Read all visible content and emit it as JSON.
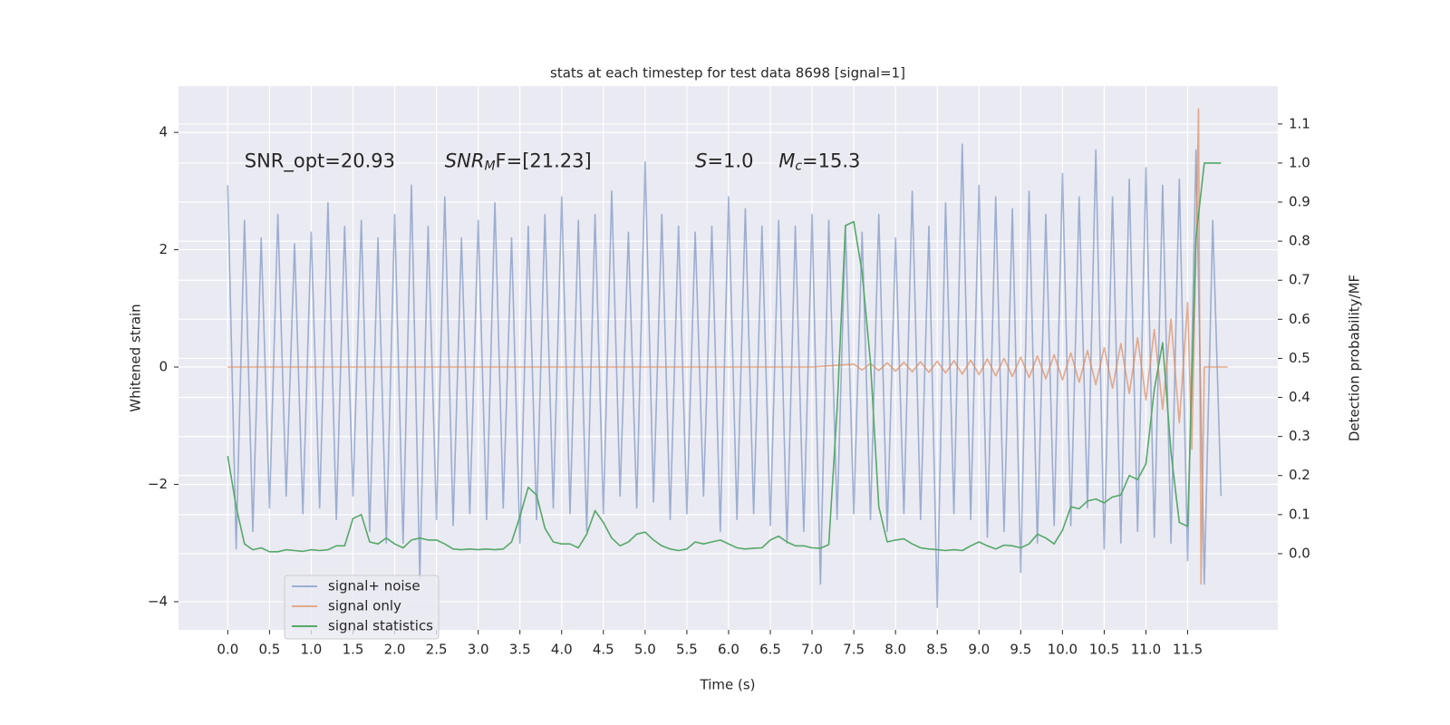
{
  "chart_data": {
    "type": "line",
    "title": "stats at each timestep for test data 8698 [signal=1]",
    "xlabel": "Time (s)",
    "ylabel": "Whitened strain",
    "y2label": "Detection probability/MF",
    "grid": true,
    "legend_position": "lower left",
    "xlim": [
      -0.59,
      12.58
    ],
    "xticks": [
      {
        "value": 0,
        "label": "0.0"
      },
      0.5,
      {
        "value": 1,
        "label": "1.0"
      },
      1.5,
      {
        "value": 2,
        "label": "2.0"
      },
      2.5,
      {
        "value": 3,
        "label": "3.0"
      },
      3.5,
      {
        "value": 4,
        "label": "4.0"
      },
      4.5,
      {
        "value": 5,
        "label": "5.0"
      },
      5.5,
      {
        "value": 6,
        "label": "6.0"
      },
      6.5,
      {
        "value": 7,
        "label": "7.0"
      },
      7.5,
      {
        "value": 8,
        "label": "8.0"
      },
      8.5,
      {
        "value": 9,
        "label": "9.0"
      },
      9.5,
      {
        "value": 10,
        "label": "10.0"
      },
      10.5,
      {
        "value": 11,
        "label": "11.0"
      },
      11.5
    ],
    "ylim": [
      -4.48,
      4.79
    ],
    "yticks": [
      {
        "value": -4,
        "label": "−4"
      },
      {
        "value": -2,
        "label": "−2"
      },
      0,
      2,
      4
    ],
    "y2lim": [
      -0.195,
      1.197
    ],
    "y2ticks": [
      {
        "value": 0,
        "label": "0.0"
      },
      0.1,
      0.2,
      0.3,
      0.4,
      0.5,
      0.6,
      0.7,
      0.8,
      0.9,
      {
        "value": 1,
        "label": "1.0"
      },
      1.1
    ],
    "annotations": [
      {
        "x": 0.2,
        "y": 3.5,
        "parts": [
          {
            "text": "SNR_opt=20.93"
          }
        ]
      },
      {
        "x": 2.6,
        "y": 3.5,
        "parts": [
          {
            "text": "SNR",
            "style": "italic"
          },
          {
            "text": "M",
            "style": "sub"
          },
          {
            "text": "F=[21.23]"
          }
        ]
      },
      {
        "x": 5.6,
        "y": 3.5,
        "parts": [
          {
            "text": "S",
            "style": "italic"
          },
          {
            "text": "=1.0"
          }
        ]
      },
      {
        "x": 6.6,
        "y": 3.5,
        "parts": [
          {
            "text": "M",
            "style": "italic"
          },
          {
            "text": "c",
            "style": "sub"
          },
          {
            "text": "=15.3"
          }
        ]
      }
    ],
    "series": [
      {
        "name": "signal+ noise",
        "color": "#4c72b0",
        "opacity": 0.5,
        "axis": "y",
        "x": [
          0,
          0.1,
          0.2,
          0.3,
          0.4,
          0.5,
          0.6,
          0.7,
          0.8,
          0.9,
          1,
          1.1,
          1.2,
          1.3,
          1.4,
          1.5,
          1.6,
          1.7,
          1.8,
          1.9,
          2,
          2.1,
          2.2,
          2.3,
          2.4,
          2.5,
          2.6,
          2.7,
          2.8,
          2.9,
          3,
          3.1,
          3.2,
          3.3,
          3.4,
          3.5,
          3.6,
          3.7,
          3.8,
          3.9,
          4,
          4.1,
          4.2,
          4.3,
          4.4,
          4.5,
          4.6,
          4.7,
          4.8,
          4.9,
          5,
          5.1,
          5.2,
          5.3,
          5.4,
          5.5,
          5.6,
          5.7,
          5.8,
          5.9,
          6,
          6.1,
          6.2,
          6.3,
          6.4,
          6.5,
          6.6,
          6.7,
          6.8,
          6.9,
          7,
          7.1,
          7.2,
          7.3,
          7.4,
          7.5,
          7.6,
          7.7,
          7.8,
          7.9,
          8,
          8.1,
          8.2,
          8.3,
          8.4,
          8.5,
          8.6,
          8.7,
          8.8,
          8.9,
          9,
          9.1,
          9.2,
          9.3,
          9.4,
          9.5,
          9.6,
          9.7,
          9.8,
          9.9,
          10,
          10.1,
          10.2,
          10.3,
          10.4,
          10.5,
          10.6,
          10.7,
          10.8,
          10.9,
          11,
          11.1,
          11.2,
          11.3,
          11.4,
          11.5,
          11.6,
          11.7,
          11.8,
          11.9
        ],
        "values": [
          3.1,
          -3.1,
          2.5,
          -2.8,
          2.2,
          -2.4,
          2.6,
          -2.2,
          2.1,
          -2.5,
          2.3,
          -2.4,
          2.8,
          -2.6,
          2.4,
          -2.2,
          2.5,
          -2.8,
          2.2,
          -3.0,
          2.6,
          -3.0,
          3.1,
          -3.6,
          2.4,
          -2.6,
          2.9,
          -2.7,
          2.2,
          -2.5,
          2.5,
          -2.6,
          2.8,
          -2.4,
          2.2,
          -3.0,
          2.4,
          -2.6,
          2.6,
          -2.4,
          2.9,
          -2.5,
          2.5,
          -2.8,
          2.6,
          -2.5,
          3.0,
          -2.2,
          2.3,
          -2.4,
          3.5,
          -2.3,
          2.6,
          -2.6,
          2.4,
          -2.5,
          2.3,
          -2.2,
          2.4,
          -2.8,
          2.9,
          -2.6,
          2.7,
          -2.5,
          2.4,
          -2.7,
          2.5,
          -3.0,
          2.4,
          -2.8,
          2.6,
          -3.7,
          2.5,
          -2.6,
          2.4,
          -2.5,
          2.3,
          -2.6,
          2.6,
          -2.8,
          2.2,
          -2.5,
          3.0,
          -2.6,
          2.4,
          -4.1,
          2.8,
          -2.5,
          3.8,
          -2.6,
          3.1,
          -2.9,
          2.9,
          -2.8,
          2.7,
          -3.5,
          3.0,
          -3.0,
          2.6,
          -2.7,
          3.3,
          -2.7,
          2.9,
          -2.4,
          3.7,
          -3.1,
          2.9,
          -3.0,
          3.2,
          -2.8,
          3.4,
          -2.9,
          3.1,
          -3.0,
          3.2,
          -3.3,
          3.7,
          -3.7,
          2.5,
          -2.2
        ]
      },
      {
        "name": "signal only",
        "color": "#dd8452",
        "opacity": 0.65,
        "axis": "y",
        "x": [
          0,
          7,
          7.5,
          7.6,
          7.7,
          7.8,
          7.9,
          8,
          8.1,
          8.2,
          8.3,
          8.4,
          8.5,
          8.6,
          8.7,
          8.8,
          8.9,
          9,
          9.1,
          9.2,
          9.3,
          9.4,
          9.5,
          9.6,
          9.7,
          9.8,
          9.9,
          10,
          10.1,
          10.2,
          10.3,
          10.4,
          10.5,
          10.6,
          10.7,
          10.8,
          10.9,
          11,
          11.1,
          11.2,
          11.3,
          11.4,
          11.5,
          11.55,
          11.6,
          11.63,
          11.66,
          11.7,
          11.98
        ],
        "values": [
          0,
          0,
          0.05,
          -0.05,
          0.06,
          -0.06,
          0.07,
          -0.07,
          0.08,
          -0.08,
          0.09,
          -0.09,
          0.1,
          -0.1,
          0.11,
          -0.12,
          0.12,
          -0.13,
          0.14,
          -0.15,
          0.15,
          -0.16,
          0.17,
          -0.18,
          0.19,
          -0.2,
          0.21,
          -0.22,
          0.24,
          -0.26,
          0.28,
          -0.3,
          0.33,
          -0.36,
          0.4,
          -0.45,
          0.5,
          -0.56,
          0.64,
          -0.72,
          0.82,
          -0.95,
          1.1,
          -1.4,
          2.0,
          4.4,
          -3.7,
          0,
          0
        ]
      },
      {
        "name": "signal statistics",
        "color": "#55a868",
        "opacity": 1,
        "axis": "y2",
        "x": [
          0,
          0.1,
          0.2,
          0.3,
          0.4,
          0.5,
          0.6,
          0.7,
          0.8,
          0.9,
          1,
          1.1,
          1.2,
          1.3,
          1.4,
          1.5,
          1.6,
          1.7,
          1.8,
          1.9,
          2,
          2.1,
          2.2,
          2.3,
          2.4,
          2.5,
          2.6,
          2.7,
          2.8,
          2.9,
          3,
          3.1,
          3.2,
          3.3,
          3.4,
          3.5,
          3.6,
          3.7,
          3.8,
          3.9,
          4,
          4.1,
          4.2,
          4.3,
          4.4,
          4.5,
          4.6,
          4.7,
          4.8,
          4.9,
          5,
          5.1,
          5.2,
          5.3,
          5.4,
          5.5,
          5.6,
          5.7,
          5.8,
          5.9,
          6,
          6.1,
          6.2,
          6.3,
          6.4,
          6.5,
          6.6,
          6.7,
          6.8,
          6.9,
          7,
          7.1,
          7.2,
          7.3,
          7.4,
          7.5,
          7.6,
          7.7,
          7.8,
          7.9,
          8,
          8.1,
          8.2,
          8.3,
          8.4,
          8.5,
          8.6,
          8.7,
          8.8,
          8.9,
          9,
          9.1,
          9.2,
          9.3,
          9.4,
          9.5,
          9.6,
          9.7,
          9.8,
          9.9,
          10,
          10.1,
          10.2,
          10.3,
          10.4,
          10.5,
          10.6,
          10.7,
          10.8,
          10.9,
          11,
          11.1,
          11.2,
          11.3,
          11.4,
          11.5,
          11.6,
          11.7,
          11.8,
          11.9
        ],
        "values": [
          0.25,
          0.12,
          0.025,
          0.01,
          0.015,
          0.005,
          0.005,
          0.01,
          0.008,
          0.006,
          0.01,
          0.008,
          0.01,
          0.02,
          0.02,
          0.09,
          0.1,
          0.03,
          0.025,
          0.04,
          0.025,
          0.015,
          0.035,
          0.04,
          0.035,
          0.035,
          0.025,
          0.012,
          0.01,
          0.012,
          0.01,
          0.012,
          0.01,
          0.012,
          0.03,
          0.095,
          0.17,
          0.15,
          0.065,
          0.03,
          0.025,
          0.025,
          0.015,
          0.05,
          0.11,
          0.08,
          0.04,
          0.02,
          0.03,
          0.05,
          0.055,
          0.035,
          0.02,
          0.012,
          0.008,
          0.012,
          0.03,
          0.025,
          0.03,
          0.035,
          0.025,
          0.015,
          0.012,
          0.014,
          0.015,
          0.035,
          0.045,
          0.03,
          0.02,
          0.02,
          0.015,
          0.014,
          0.023,
          0.37,
          0.84,
          0.85,
          0.72,
          0.49,
          0.12,
          0.03,
          0.035,
          0.038,
          0.025,
          0.015,
          0.012,
          0.01,
          0.008,
          0.01,
          0.008,
          0.02,
          0.03,
          0.02,
          0.012,
          0.022,
          0.02,
          0.015,
          0.025,
          0.05,
          0.04,
          0.025,
          0.06,
          0.12,
          0.115,
          0.135,
          0.14,
          0.13,
          0.145,
          0.15,
          0.2,
          0.19,
          0.23,
          0.42,
          0.54,
          0.26,
          0.08,
          0.07,
          0.81,
          1.0,
          1.0,
          1.0
        ]
      }
    ]
  }
}
